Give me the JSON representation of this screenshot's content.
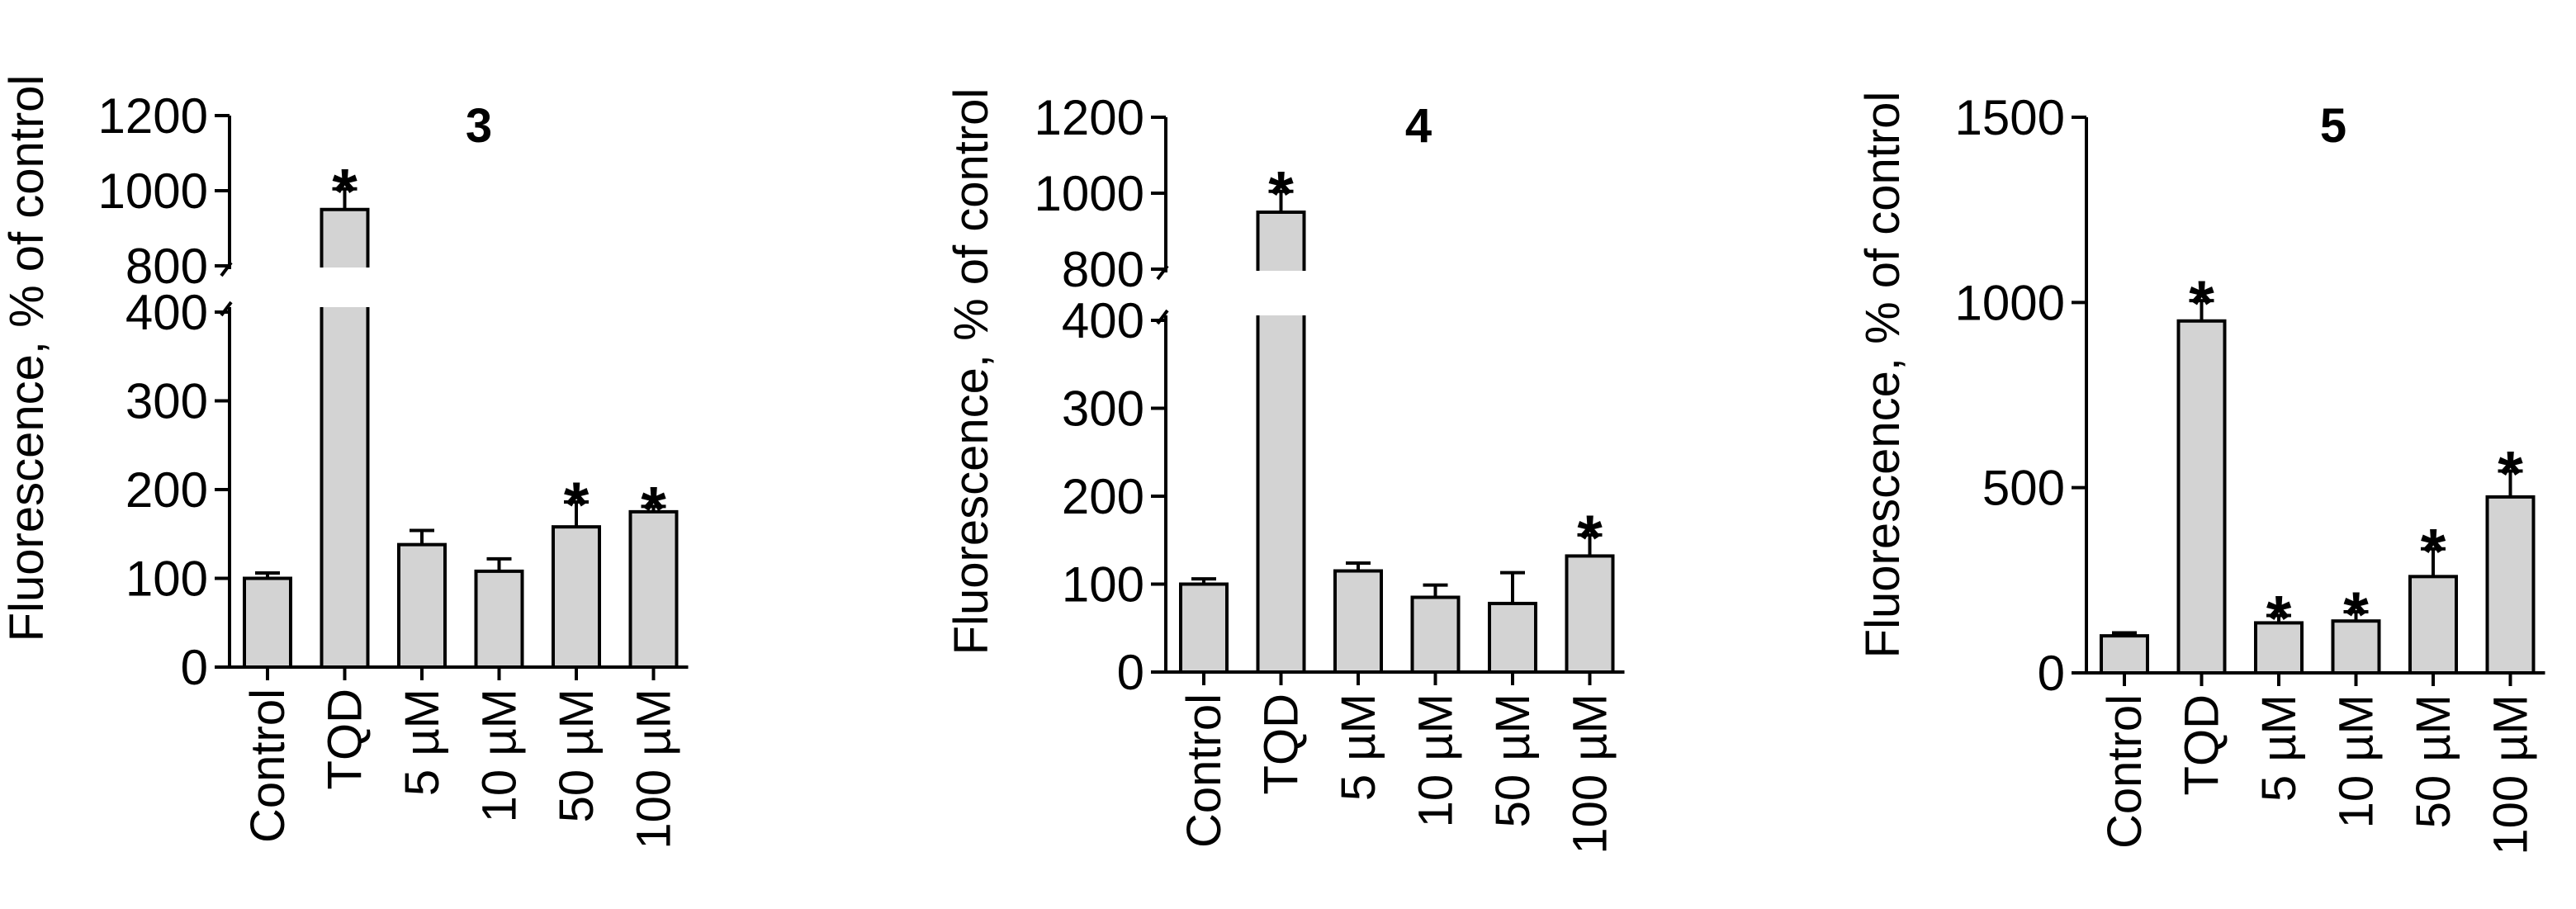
{
  "chart_data": [
    {
      "type": "bar",
      "title": "3",
      "ylabel": "Fluorescence,  % of control",
      "categories": [
        "Control",
        "TQD",
        "5 µM",
        "10 µM",
        "50 µM",
        "100 µM"
      ],
      "values": [
        100,
        950,
        138,
        108,
        158,
        175
      ],
      "errors": [
        6,
        55,
        16,
        14,
        28,
        6
      ],
      "significant": [
        false,
        true,
        false,
        false,
        true,
        true
      ],
      "axis_break": true,
      "lower_ylim": [
        0,
        400
      ],
      "lower_ticks": [
        0,
        100,
        200,
        300,
        400
      ],
      "upper_ylim": [
        800,
        1200
      ],
      "upper_ticks": [
        800,
        1000,
        1200
      ],
      "grid": false,
      "legend": "none"
    },
    {
      "type": "bar",
      "title": "4",
      "ylabel": "Fluorescence,  % of control",
      "categories": [
        "Control",
        "TQD",
        "5 µM",
        "10 µM",
        "50 µM",
        "100 µM"
      ],
      "values": [
        100,
        950,
        115,
        85,
        78,
        132
      ],
      "errors": [
        6,
        55,
        9,
        14,
        35,
        24
      ],
      "significant": [
        false,
        true,
        false,
        false,
        false,
        true
      ],
      "axis_break": true,
      "lower_ylim": [
        0,
        400
      ],
      "lower_ticks": [
        0,
        100,
        200,
        300,
        400
      ],
      "upper_ylim": [
        800,
        1200
      ],
      "upper_ticks": [
        800,
        1000,
        1200
      ],
      "grid": false,
      "legend": "none"
    },
    {
      "type": "bar",
      "title": "5",
      "ylabel": "Fluorescence,  % of control",
      "categories": [
        "Control",
        "TQD",
        "5 µM",
        "10 µM",
        "50 µM",
        "100 µM"
      ],
      "values": [
        100,
        950,
        135,
        140,
        260,
        475
      ],
      "errors": [
        8,
        55,
        20,
        25,
        75,
        70
      ],
      "significant": [
        false,
        true,
        true,
        true,
        true,
        true
      ],
      "axis_break": false,
      "ylim": [
        0,
        1500
      ],
      "ticks": [
        0,
        500,
        1000,
        1500
      ],
      "grid": false,
      "legend": "none"
    }
  ],
  "colors": {
    "bar_fill": "#d3d3d3",
    "stroke": "#000000",
    "background": "#ffffff"
  },
  "significance_marker": "*"
}
